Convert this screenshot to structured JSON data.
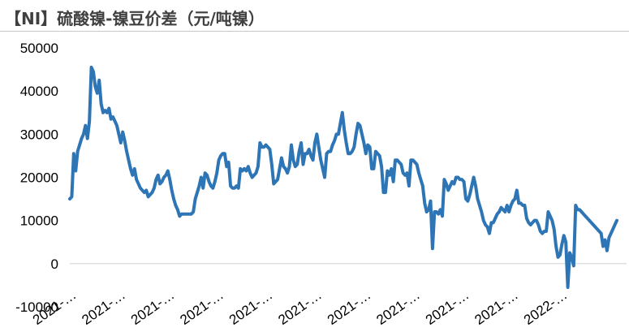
{
  "chart_data": {
    "type": "line",
    "title": "【NI】硫酸镍-镍豆价差（元/吨镍）",
    "xlabel": "",
    "ylabel": "",
    "ylim": [
      -10000,
      50000
    ],
    "yticks": [
      50000,
      40000,
      30000,
      20000,
      10000,
      0,
      -10000
    ],
    "x_tick_labels": [
      "2021-…",
      "2021-…",
      "2021-…",
      "2021-…",
      "2021-…",
      "2021-…",
      "2021-…",
      "2021-…",
      "2021-…",
      "2021-…",
      "2022-…"
    ],
    "grid": false,
    "legend": "none",
    "line_color": "#2e75b6",
    "series": [
      {
        "values": [
          15000,
          15500,
          25500,
          21500,
          26000,
          27500,
          29000,
          30000,
          32000,
          29000,
          33000,
          45500,
          44500,
          41000,
          39500,
          42500,
          37000,
          35000,
          35500,
          35000,
          36000,
          33500,
          34000,
          33000,
          32000,
          30000,
          28000,
          30500,
          28500,
          26000,
          24000,
          22000,
          20500,
          22000,
          19500,
          18500,
          17500,
          17000,
          16500,
          17000,
          15500,
          16000,
          16500,
          17500,
          19500,
          20500,
          18500,
          19000,
          20000,
          20500,
          21500,
          19500,
          17000,
          15000,
          13500,
          12500,
          11000,
          11500,
          11500,
          11500,
          11500,
          11500,
          11500,
          12000,
          15000,
          16500,
          18000,
          20000,
          17500,
          21000,
          20500,
          19000,
          18000,
          17500,
          19000,
          21000,
          24000,
          25000,
          25500,
          25500,
          22500,
          23500,
          18000,
          17500,
          17500,
          18000,
          17500,
          22000,
          21500,
          22000,
          21500,
          22500,
          21000,
          20000,
          20500,
          21000,
          22500,
          28000,
          27000,
          27000,
          27500,
          27000,
          26500,
          23000,
          18500,
          19000,
          19500,
          22000,
          24500,
          22500,
          22000,
          21000,
          22500,
          27500,
          24000,
          22500,
          23000,
          26000,
          28000,
          23000,
          25500,
          25500,
          26500,
          25000,
          24000,
          28000,
          30000,
          27000,
          24000,
          22000,
          20000,
          25500,
          26000,
          26000,
          27500,
          28500,
          30000,
          30000,
          32500,
          35000,
          31000,
          28000,
          25500,
          25500,
          26000,
          27000,
          30000,
          32500,
          32000,
          30000,
          28000,
          25500,
          27500,
          27000,
          22000,
          22000,
          26000,
          25500,
          25000,
          22500,
          16500,
          16500,
          21500,
          20500,
          22000,
          19000,
          24000,
          24000,
          23500,
          23000,
          21000,
          20500,
          21000,
          18000,
          24000,
          24000,
          23500,
          23000,
          21000,
          19500,
          18000,
          14000,
          12000,
          12500,
          14500,
          3500,
          12000,
          12000,
          11500,
          12500,
          11000,
          19500,
          18500,
          17000,
          18000,
          19000,
          18500,
          20000,
          20000,
          19500,
          19500,
          19000,
          15000,
          14500,
          16000,
          18000,
          20000,
          18000,
          15000,
          13500,
          12000,
          10000,
          9000,
          8500,
          7000,
          9500,
          9500,
          10500,
          11500,
          12000,
          13000,
          12500,
          12000,
          13500,
          12000,
          13500,
          14500,
          15000,
          17000,
          14000,
          14000,
          13500,
          13500,
          10500,
          9500,
          9000,
          9500,
          10000,
          10000,
          9000,
          7500,
          7000,
          7500,
          7500,
          12000,
          11000,
          10000,
          8000,
          4000,
          1500,
          2000,
          4500,
          6500,
          5000,
          -5500,
          2500,
          1500,
          -500,
          13500,
          12500,
          12500,
          12000,
          11500,
          11000,
          10500,
          10000,
          9500,
          9000,
          8500,
          8000,
          7500,
          7000,
          4000,
          5500,
          3000,
          6000,
          7000,
          8000,
          9000,
          10000
        ]
      }
    ]
  }
}
